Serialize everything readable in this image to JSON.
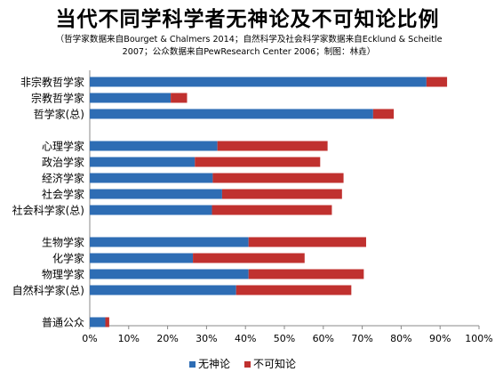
{
  "chart_data": {
    "type": "bar",
    "orientation": "horizontal",
    "stacked": true,
    "title": "当代不同学科学者无神论及不可知论比例",
    "subtitle": "（哲学家数据来自Bourget & Chalmers 2014；自然科学及社会科学家数据来自Ecklund & Scheitle\n2007；公众数据来自PewResearch Center 2006；制图：林垚）",
    "categories": [
      "非宗教哲学家",
      "宗教哲学家",
      "哲学家(总)",
      "心理学家",
      "政治学家",
      "经济学家",
      "社会学家",
      "社会科学家(总)",
      "生物学家",
      "化学家",
      "物理学家",
      "自然科学家(总)",
      "普通公众"
    ],
    "groups": [
      [
        0,
        1,
        2
      ],
      [
        3,
        4,
        5,
        6,
        7
      ],
      [
        8,
        9,
        10,
        11
      ],
      [
        12
      ]
    ],
    "series": [
      {
        "name": "无神论",
        "color": "#2e6db4",
        "values": [
          86.5,
          20.8,
          72.8,
          32.8,
          27.0,
          31.6,
          34.0,
          31.4,
          40.8,
          26.5,
          40.8,
          37.6,
          4.0
        ]
      },
      {
        "name": "不可知论",
        "color": "#c0312f",
        "values": [
          5.3,
          4.2,
          5.3,
          28.3,
          32.2,
          33.6,
          30.8,
          30.8,
          30.2,
          28.7,
          29.6,
          29.6,
          1.0
        ]
      }
    ],
    "xlim": [
      0,
      100
    ],
    "xticks": [
      "0%",
      "10%",
      "20%",
      "30%",
      "40%",
      "50%",
      "60%",
      "70%",
      "80%",
      "90%",
      "100%"
    ],
    "grid": false,
    "legend_position": "bottom"
  }
}
